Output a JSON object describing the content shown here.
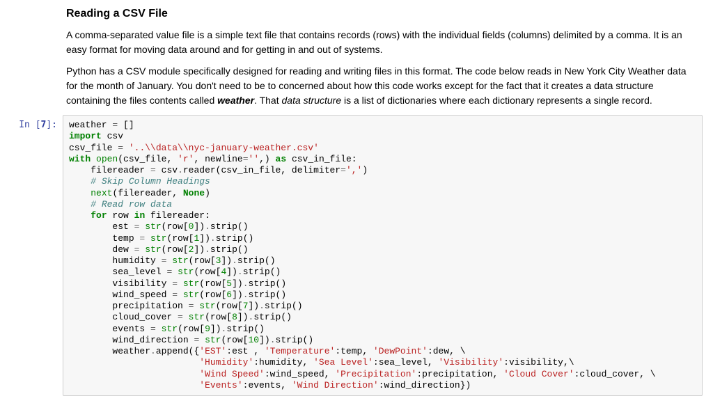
{
  "heading": "Reading a CSV File",
  "para1": "A comma-separated value file is a simple text file that contains records (rows) with the individual fields (columns) delimited by a comma. It is an easy format for moving data around and for getting in and out of systems.",
  "para2_a": "Python has a CSV module specifically designed for reading and writing files in this format. The code below reads in New York City Weather data for the month of January. You don't need to be to concerned about how this code works except for the fact that it creates a data structure containing the files contents called ",
  "para2_b": "weather",
  "para2_c": ". That ",
  "para2_d": "data structure",
  "para2_e": " is a list of dictionaries where each dictionary represents a single record.",
  "prompt_in": "In ",
  "prompt_num": "7",
  "c": {
    "l01_a": "weather ",
    "l01_b": "=",
    "l01_c": " []",
    "l02_a": "import",
    "l02_b": " csv",
    "l03_a": "csv_file ",
    "l03_b": "=",
    "l03_c": " ",
    "l03_d": "'..\\\\data\\\\nyc-january-weather.csv'",
    "l04_a": "with",
    "l04_b": " ",
    "l04_c": "open",
    "l04_d": "(csv_file, ",
    "l04_e": "'r'",
    "l04_f": ", newline",
    "l04_g": "=",
    "l04_h": "''",
    "l04_i": ",) ",
    "l04_j": "as",
    "l04_k": " csv_in_file:",
    "l05_a": "    filereader ",
    "l05_b": "=",
    "l05_c": " csv",
    "l05_d": ".",
    "l05_e": "reader(csv_in_file, delimiter",
    "l05_f": "=",
    "l05_g": "','",
    "l05_h": ")",
    "l06_a": "    ",
    "l06_b": "# Skip Column Headings",
    "l07_a": "    ",
    "l07_b": "next",
    "l07_c": "(filereader, ",
    "l07_d": "None",
    "l07_e": ")",
    "l08_a": "    ",
    "l08_b": "# Read row data",
    "l09_a": "    ",
    "l09_b": "for",
    "l09_c": " row ",
    "l09_d": "in",
    "l09_e": " filereader:",
    "l10_a": "        est ",
    "l10_b": "=",
    "l10_c": " ",
    "l10_d": "str",
    "l10_e": "(row[",
    "l10_f": "0",
    "l10_g": "])",
    "l10_h": ".",
    "l10_i": "strip()",
    "l11_a": "        temp ",
    "l11_b": "=",
    "l11_c": " ",
    "l11_d": "str",
    "l11_e": "(row[",
    "l11_f": "1",
    "l11_g": "])",
    "l11_h": ".",
    "l11_i": "strip()",
    "l12_a": "        dew ",
    "l12_b": "=",
    "l12_c": " ",
    "l12_d": "str",
    "l12_e": "(row[",
    "l12_f": "2",
    "l12_g": "])",
    "l12_h": ".",
    "l12_i": "strip()",
    "l13_a": "        humidity ",
    "l13_b": "=",
    "l13_c": " ",
    "l13_d": "str",
    "l13_e": "(row[",
    "l13_f": "3",
    "l13_g": "])",
    "l13_h": ".",
    "l13_i": "strip()",
    "l14_a": "        sea_level ",
    "l14_b": "=",
    "l14_c": " ",
    "l14_d": "str",
    "l14_e": "(row[",
    "l14_f": "4",
    "l14_g": "])",
    "l14_h": ".",
    "l14_i": "strip()",
    "l15_a": "        visibility ",
    "l15_b": "=",
    "l15_c": " ",
    "l15_d": "str",
    "l15_e": "(row[",
    "l15_f": "5",
    "l15_g": "])",
    "l15_h": ".",
    "l15_i": "strip()",
    "l16_a": "        wind_speed ",
    "l16_b": "=",
    "l16_c": " ",
    "l16_d": "str",
    "l16_e": "(row[",
    "l16_f": "6",
    "l16_g": "])",
    "l16_h": ".",
    "l16_i": "strip()",
    "l17_a": "        precipitation ",
    "l17_b": "=",
    "l17_c": " ",
    "l17_d": "str",
    "l17_e": "(row[",
    "l17_f": "7",
    "l17_g": "])",
    "l17_h": ".",
    "l17_i": "strip()",
    "l18_a": "        cloud_cover ",
    "l18_b": "=",
    "l18_c": " ",
    "l18_d": "str",
    "l18_e": "(row[",
    "l18_f": "8",
    "l18_g": "])",
    "l18_h": ".",
    "l18_i": "strip()",
    "l19_a": "        events ",
    "l19_b": "=",
    "l19_c": " ",
    "l19_d": "str",
    "l19_e": "(row[",
    "l19_f": "9",
    "l19_g": "])",
    "l19_h": ".",
    "l19_i": "strip()",
    "l20_a": "        wind_direction ",
    "l20_b": "=",
    "l20_c": " ",
    "l20_d": "str",
    "l20_e": "(row[",
    "l20_f": "10",
    "l20_g": "])",
    "l20_h": ".",
    "l20_i": "strip()",
    "l21_a": "        weather",
    "l21_b": ".",
    "l21_c": "append({",
    "l21_d": "'EST'",
    "l21_e": ":est , ",
    "l21_f": "'Temperature'",
    "l21_g": ":temp, ",
    "l21_h": "'DewPoint'",
    "l21_i": ":dew, \\",
    "l22_a": "                        ",
    "l22_b": "'Humidity'",
    "l22_c": ":humidity, ",
    "l22_d": "'Sea Level'",
    "l22_e": ":sea_level, ",
    "l22_f": "'Visibility'",
    "l22_g": ":visibility,\\",
    "l23_a": "                        ",
    "l23_b": "'Wind Speed'",
    "l23_c": ":wind_speed, ",
    "l23_d": "'Precipitation'",
    "l23_e": ":precipitation, ",
    "l23_f": "'Cloud Cover'",
    "l23_g": ":cloud_cover, \\",
    "l24_a": "                        ",
    "l24_b": "'Events'",
    "l24_c": ":events, ",
    "l24_d": "'Wind Direction'",
    "l24_e": ":wind_direction})"
  }
}
